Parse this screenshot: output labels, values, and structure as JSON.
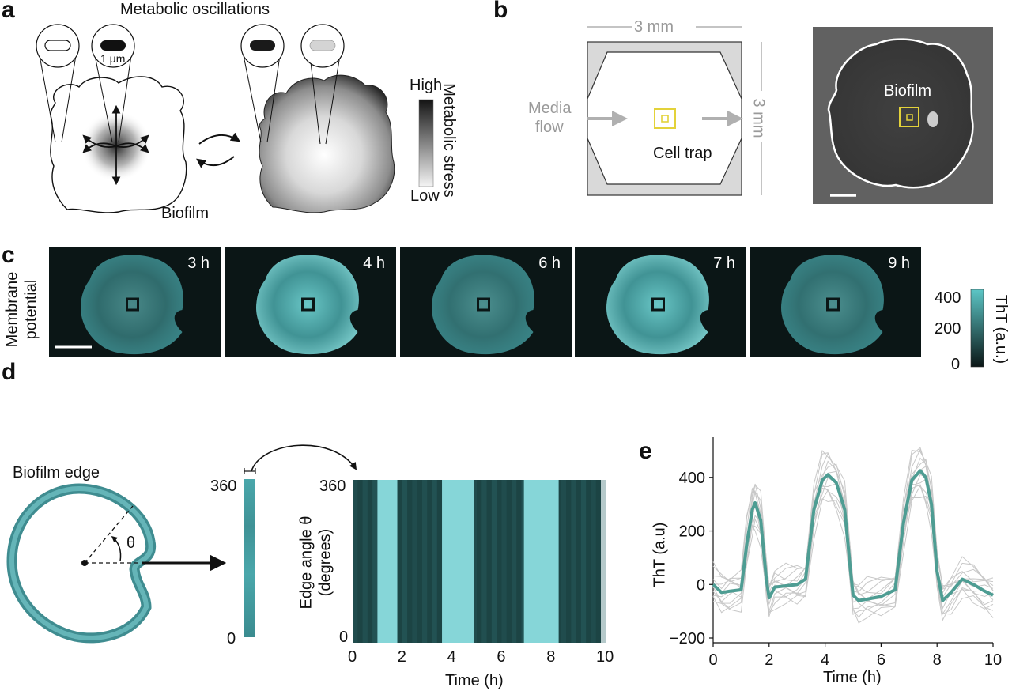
{
  "panels": {
    "a": "a",
    "b": "b",
    "c": "c",
    "d": "d",
    "e": "e"
  },
  "panel_a": {
    "title": "Metabolic oscillations",
    "scale": "1 μm",
    "biofilm": "Biofilm",
    "colorbar_high": "High",
    "colorbar_low": "Low",
    "colorbar_label": "Metabolic stress"
  },
  "panel_b": {
    "top_dim": "3 mm",
    "side_dim": "3 mm",
    "media": "Media",
    "flow": "flow",
    "cell_trap": "Cell trap",
    "photo_label": "Biofilm",
    "colors": {
      "trap": "#e3d23a",
      "device_fill": "#d9d9d9",
      "outline": "#ffffff"
    }
  },
  "panel_c": {
    "row_label_1": "Membrane",
    "row_label_2": "potential",
    "frames": [
      {
        "time": "3 h",
        "intensity": 0.55
      },
      {
        "time": "4 h",
        "intensity": 1.0
      },
      {
        "time": "6 h",
        "intensity": 0.6
      },
      {
        "time": "7 h",
        "intensity": 1.0
      },
      {
        "time": "9 h",
        "intensity": 0.6
      }
    ],
    "colorbar": {
      "label": "ThT (a.u.)",
      "ticks": [
        "400",
        "200",
        "0"
      ]
    },
    "colors": {
      "cyan": "#5cc6c6",
      "dark": "#0b1616"
    }
  },
  "panel_d": {
    "edge_label": "Biofilm edge",
    "theta": "θ",
    "strip_ticks": {
      "top": "360",
      "bottom": "0"
    },
    "kymo_ylabel_1": "Edge angle θ",
    "kymo_ylabel_2": "(degrees)",
    "kymo_xlabel": "Time (h)",
    "kymo_yticks": [
      "360",
      "0"
    ],
    "kymo_xticks": [
      "0",
      "2",
      "4",
      "6",
      "8",
      "10"
    ],
    "bright_bands_hours": [
      [
        1.0,
        1.8
      ],
      [
        3.6,
        4.9
      ],
      [
        6.9,
        8.3
      ]
    ]
  },
  "chart_data": {
    "type": "line",
    "xlabel": "Time (h)",
    "ylabel": "ThT (a.u)",
    "xlim": [
      0,
      10
    ],
    "ylim": [
      -200,
      550
    ],
    "xticks": [
      "0",
      "2",
      "4",
      "6",
      "8",
      "10"
    ],
    "yticks": [
      "400",
      "200",
      "0",
      "−200"
    ],
    "series": [
      {
        "x": [
          0,
          0.3,
          0.6,
          1.0,
          1.2,
          1.4,
          1.5,
          1.7,
          1.9,
          2.0,
          2.2,
          2.6,
          3.0,
          3.3,
          3.6,
          3.9,
          4.1,
          4.4,
          4.7,
          4.9,
          5.0,
          5.2,
          5.5,
          6.0,
          6.5,
          6.8,
          7.1,
          7.4,
          7.6,
          7.8,
          8.0,
          8.2,
          8.5,
          8.9,
          9.3,
          9.7,
          10.0
        ],
        "values": [
          0,
          -30,
          -25,
          -20,
          150,
          280,
          305,
          240,
          20,
          -50,
          -10,
          -5,
          0,
          20,
          280,
          390,
          410,
          380,
          280,
          60,
          -40,
          -60,
          -55,
          -45,
          -20,
          230,
          390,
          425,
          400,
          300,
          50,
          -60,
          -30,
          20,
          0,
          -25,
          -40
        ]
      }
    ],
    "band_spread": 70,
    "colors": {
      "mean": "#4e9d93",
      "individual": "#c8c8c8"
    }
  }
}
